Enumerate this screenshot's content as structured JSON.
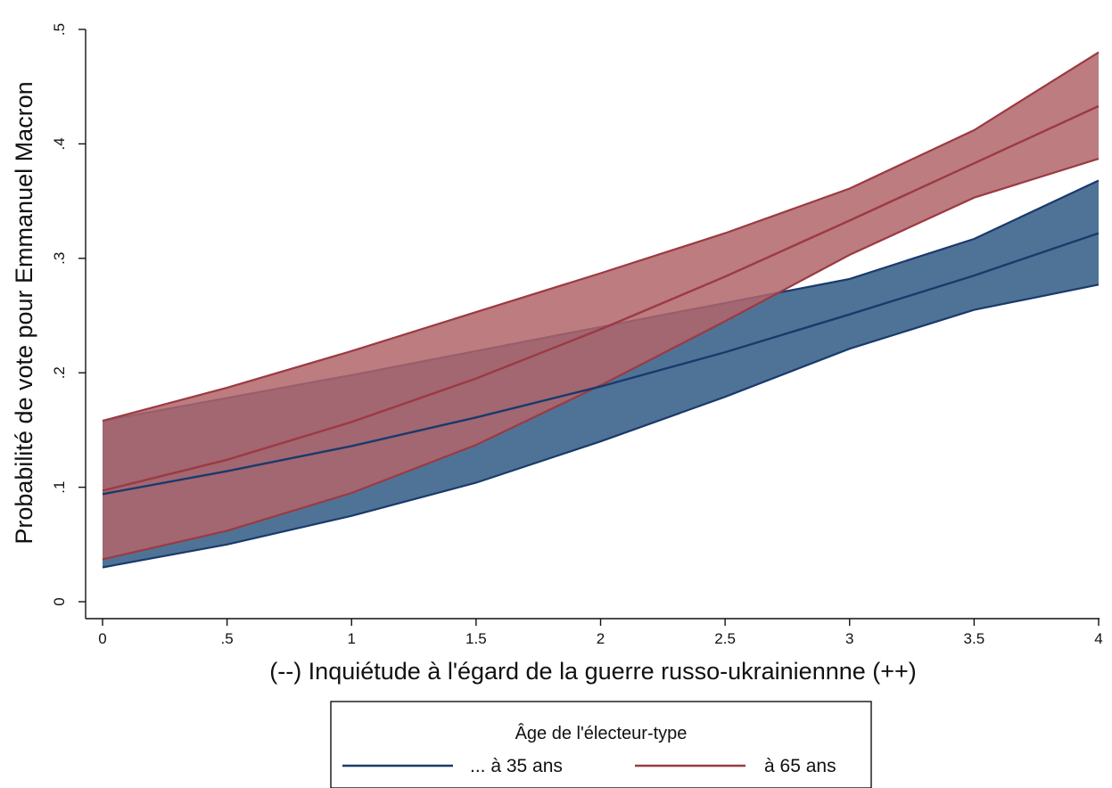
{
  "chart_data": {
    "type": "line",
    "xlabel": "(--) Inquiétude à l'égard de la guerre russo-ukrainiennne (++)",
    "ylabel": "Probabilité de vote pour Emmanuel Macron",
    "xlim": [
      0,
      4
    ],
    "ylim": [
      0,
      0.5
    ],
    "x_ticks": [
      0,
      0.5,
      1,
      1.5,
      2,
      2.5,
      3,
      3.5,
      4
    ],
    "x_tick_labels": [
      "0",
      ".5",
      "1",
      "1.5",
      "2",
      "2.5",
      "3",
      "3.5",
      "4"
    ],
    "y_ticks": [
      0,
      0.1,
      0.2,
      0.3,
      0.4,
      0.5
    ],
    "y_tick_labels": [
      "0",
      ".1",
      ".2",
      ".3",
      ".4",
      ".5"
    ],
    "grid": false,
    "legend": {
      "title": "Âge de l'électeur-type",
      "placement": "bottom"
    },
    "x": [
      0,
      0.5,
      1,
      1.5,
      2,
      2.5,
      3,
      3.5,
      4
    ],
    "series": [
      {
        "name": "... à 35 ans",
        "color": "#1a3a6b",
        "fill_color": "#4f7397",
        "values": [
          0.094,
          0.114,
          0.136,
          0.161,
          0.188,
          0.218,
          0.251,
          0.285,
          0.322
        ],
        "lower": [
          0.03,
          0.05,
          0.075,
          0.104,
          0.14,
          0.179,
          0.221,
          0.255,
          0.277
        ],
        "upper": [
          0.158,
          0.178,
          0.198,
          0.219,
          0.24,
          0.261,
          0.282,
          0.317,
          0.368
        ]
      },
      {
        "name": "à 65 ans",
        "color": "#9c3a42",
        "fill_color": "#b0656a",
        "values": [
          0.097,
          0.124,
          0.157,
          0.195,
          0.238,
          0.284,
          0.333,
          0.383,
          0.433
        ],
        "lower": [
          0.037,
          0.062,
          0.095,
          0.137,
          0.189,
          0.245,
          0.303,
          0.353,
          0.387
        ],
        "upper": [
          0.158,
          0.187,
          0.219,
          0.253,
          0.287,
          0.322,
          0.361,
          0.412,
          0.48
        ]
      }
    ]
  }
}
